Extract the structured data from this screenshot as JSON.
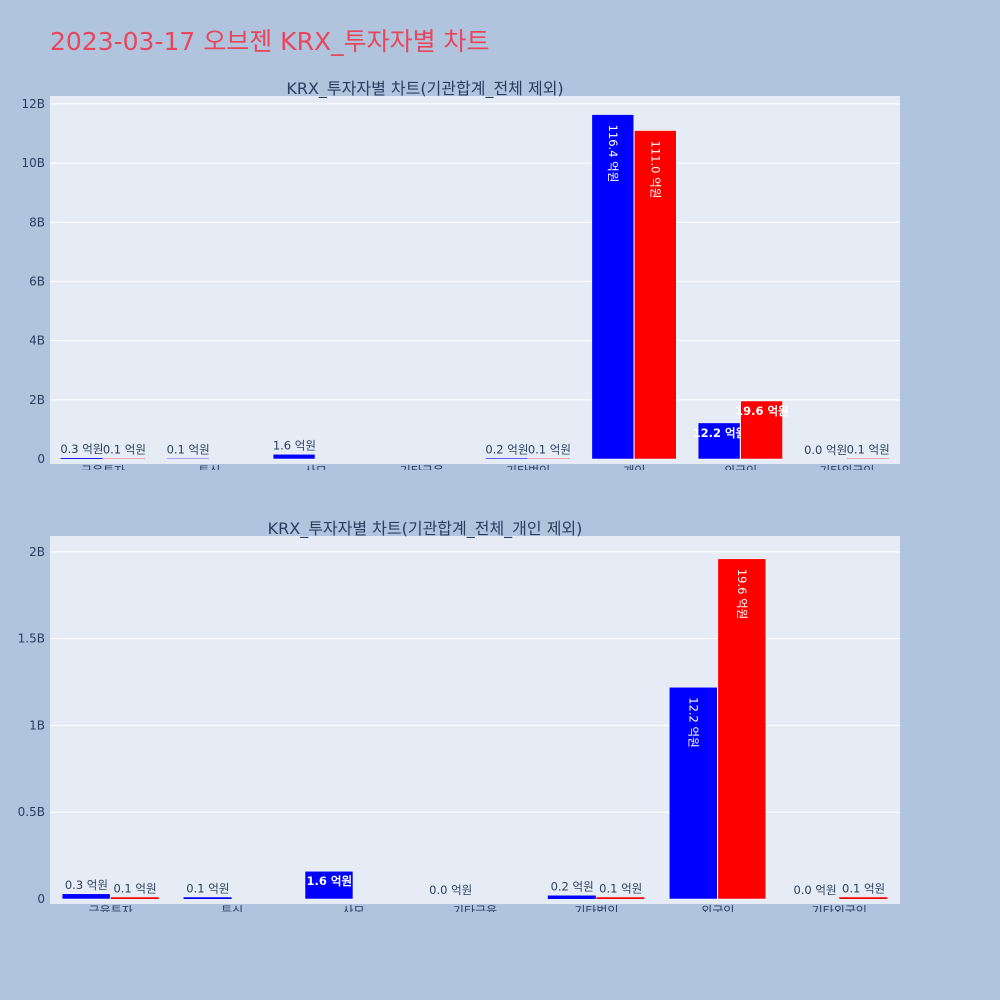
{
  "page": {
    "title": "2023-03-17 오브젠 KRX_투자자별 차트"
  },
  "colors": {
    "series1": "#0000ff",
    "series2": "#ff0000",
    "title": "#e8465b"
  },
  "chart_data": [
    {
      "type": "bar",
      "title": "KRX_투자자별 차트(기관합계_전체 제외)",
      "categories": [
        "금융투자",
        "투신",
        "사모",
        "기타금융",
        "기타법인",
        "개인",
        "외국인",
        "기타외국인"
      ],
      "series": [
        {
          "values": [
            30000000,
            10000000,
            160000000,
            0,
            20000000,
            11640000000,
            1220000000,
            0
          ],
          "labels": [
            "0.3 억원",
            "0.1 억원",
            "1.6 억원",
            "",
            "0.2 억원",
            "116.4 억원",
            "12.2 억원",
            "0.0 억원"
          ]
        },
        {
          "values": [
            10000000,
            0,
            0,
            0,
            10000000,
            11100000000,
            1960000000,
            10000000
          ],
          "labels": [
            "0.1 억원",
            "",
            "",
            "",
            "0.1 억원",
            "111.0 억원",
            "19.6 억원",
            "0.1 억원"
          ]
        }
      ],
      "yticks": [
        "0",
        "2B",
        "4B",
        "6B",
        "8B",
        "10B",
        "12B"
      ],
      "ylim": [
        0,
        12200000000
      ]
    },
    {
      "type": "bar",
      "title": "KRX_투자자별 차트(기관합계_전체_개인 제외)",
      "categories": [
        "금융투자",
        "투신",
        "사모",
        "기타금융",
        "기타법인",
        "외국인",
        "기타외국인"
      ],
      "series": [
        {
          "values": [
            30000000,
            10000000,
            160000000,
            0,
            20000000,
            1220000000,
            0
          ],
          "labels": [
            "0.3 억원",
            "0.1 억원",
            "1.6 억원",
            "0.0 억원",
            "0.2 억원",
            "12.2 억원",
            "0.0 억원"
          ]
        },
        {
          "values": [
            10000000,
            0,
            0,
            0,
            10000000,
            1960000000,
            10000000
          ],
          "labels": [
            "0.1 억원",
            "",
            "",
            "",
            "0.1 억원",
            "19.6 억원",
            "0.1 억원"
          ]
        }
      ],
      "yticks": [
        "0",
        "0.5B",
        "1B",
        "1.5B",
        "2B"
      ],
      "ylim": [
        0,
        2080000000
      ]
    }
  ]
}
